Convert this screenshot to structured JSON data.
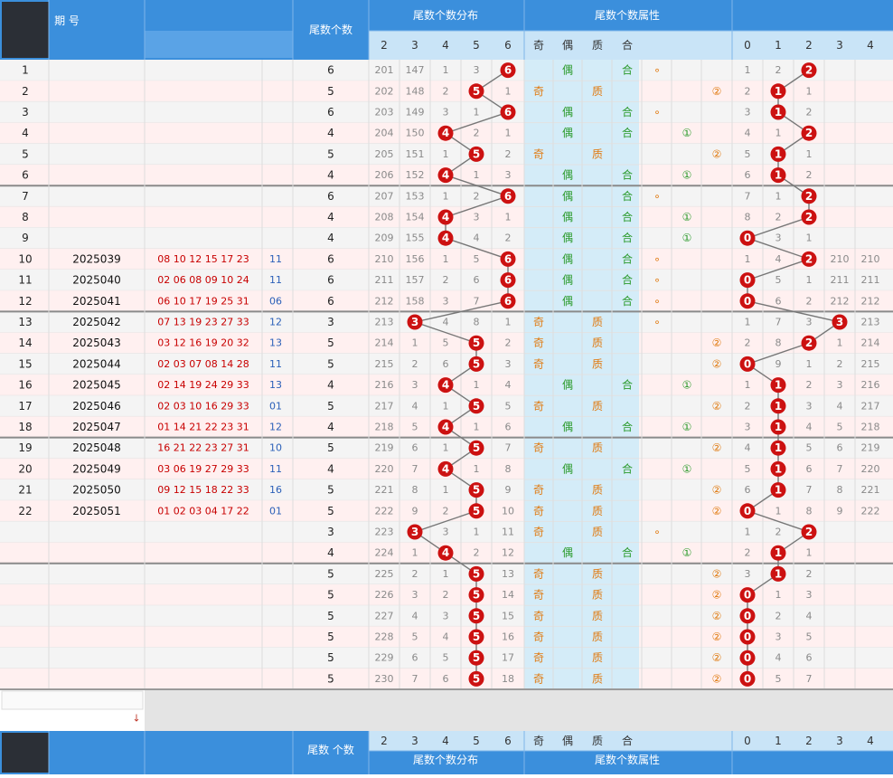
{
  "header": {
    "period_label": "期\n号",
    "tail_count_label": "尾数个数",
    "dist_group": "尾数个数分布",
    "attr_group": "尾数个数属性",
    "dist_cols": [
      "2",
      "3",
      "4",
      "5",
      "6"
    ],
    "attr_cols": [
      "奇",
      "偶",
      "质",
      "合",
      "",
      "",
      ""
    ],
    "right_cols": [
      "0",
      "1",
      "2",
      "3",
      "4"
    ]
  },
  "footer": {
    "tail_count_label": "尾数\n个数",
    "dist_group": "尾数个数分布",
    "attr_group": "尾数个数属性",
    "dist_cols": [
      "2",
      "3",
      "4",
      "5",
      "6"
    ],
    "attr_cols": [
      "奇",
      "偶",
      "质",
      "合",
      "",
      "",
      ""
    ],
    "right_cols": [
      "0",
      "1",
      "2",
      "3",
      "4"
    ]
  },
  "colors": {
    "header_blue": "#3b8fdc",
    "header_light": "#c9e4f7",
    "row_even": "#fff0f0",
    "row_odd": "#f4f4f4",
    "ball_red": "#cc1111",
    "attr_orange": "#e07a10",
    "attr_green": "#2a9a2a",
    "number_red": "#c80000",
    "special_blue": "#2a5fb8"
  },
  "chart_data": {
    "type": "table",
    "rows": [
      {
        "idx": "1",
        "period": "",
        "nums": "",
        "sp": "",
        "tail": 6,
        "dist": [
          "201",
          "147",
          "1",
          "3",
          "6"
        ],
        "attrs": [
          "",
          "偶",
          "",
          "合",
          "∘",
          "",
          ""
        ],
        "right": [
          "1",
          "2",
          "2",
          "",
          ""
        ]
      },
      {
        "idx": "2",
        "period": "",
        "nums": "",
        "sp": "",
        "tail": 5,
        "dist": [
          "202",
          "148",
          "2",
          "5",
          "1"
        ],
        "attrs": [
          "奇",
          "",
          "质",
          "",
          "",
          "",
          "②"
        ],
        "right": [
          "2",
          "1",
          "1",
          "",
          ""
        ]
      },
      {
        "idx": "3",
        "period": "",
        "nums": "",
        "sp": "",
        "tail": 6,
        "dist": [
          "203",
          "149",
          "3",
          "1",
          "6"
        ],
        "attrs": [
          "",
          "偶",
          "",
          "合",
          "∘",
          "",
          ""
        ],
        "right": [
          "3",
          "1",
          "2",
          "",
          ""
        ]
      },
      {
        "idx": "4",
        "period": "",
        "nums": "",
        "sp": "",
        "tail": 4,
        "dist": [
          "204",
          "150",
          "4",
          "2",
          "1"
        ],
        "attrs": [
          "",
          "偶",
          "",
          "合",
          "",
          "①",
          ""
        ],
        "right": [
          "4",
          "1",
          "2",
          "",
          ""
        ]
      },
      {
        "idx": "5",
        "period": "",
        "nums": "",
        "sp": "",
        "tail": 5,
        "dist": [
          "205",
          "151",
          "1",
          "5",
          "2"
        ],
        "attrs": [
          "奇",
          "",
          "质",
          "",
          "",
          "",
          "②"
        ],
        "right": [
          "5",
          "1",
          "1",
          "",
          ""
        ]
      },
      {
        "idx": "6",
        "period": "",
        "nums": "",
        "sp": "",
        "tail": 4,
        "dist": [
          "206",
          "152",
          "4",
          "1",
          "3"
        ],
        "attrs": [
          "",
          "偶",
          "",
          "合",
          "",
          "①",
          ""
        ],
        "right": [
          "6",
          "1",
          "2",
          "",
          ""
        ]
      },
      {
        "idx": "7",
        "period": "",
        "nums": "",
        "sp": "",
        "tail": 6,
        "dist": [
          "207",
          "153",
          "1",
          "2",
          "6"
        ],
        "attrs": [
          "",
          "偶",
          "",
          "合",
          "∘",
          "",
          ""
        ],
        "right": [
          "7",
          "1",
          "2",
          "",
          ""
        ]
      },
      {
        "idx": "8",
        "period": "",
        "nums": "",
        "sp": "",
        "tail": 4,
        "dist": [
          "208",
          "154",
          "4",
          "3",
          "1"
        ],
        "attrs": [
          "",
          "偶",
          "",
          "合",
          "",
          "①",
          ""
        ],
        "right": [
          "8",
          "2",
          "2",
          "",
          ""
        ]
      },
      {
        "idx": "9",
        "period": "",
        "nums": "",
        "sp": "",
        "tail": 4,
        "dist": [
          "209",
          "155",
          "4",
          "4",
          "2"
        ],
        "attrs": [
          "",
          "偶",
          "",
          "合",
          "",
          "①",
          ""
        ],
        "right": [
          "0",
          "3",
          "1",
          "",
          ""
        ]
      },
      {
        "idx": "10",
        "period": "2025039",
        "nums": "08 10 12 15 17 23",
        "sp": "11",
        "tail": 6,
        "dist": [
          "210",
          "156",
          "1",
          "5",
          "6"
        ],
        "attrs": [
          "",
          "偶",
          "",
          "合",
          "∘",
          "",
          ""
        ],
        "right": [
          "1",
          "4",
          "2",
          "210",
          "210"
        ]
      },
      {
        "idx": "11",
        "period": "2025040",
        "nums": "02 06 08 09 10 24",
        "sp": "11",
        "tail": 6,
        "dist": [
          "211",
          "157",
          "2",
          "6",
          "6"
        ],
        "attrs": [
          "",
          "偶",
          "",
          "合",
          "∘",
          "",
          ""
        ],
        "right": [
          "0",
          "5",
          "1",
          "211",
          "211"
        ]
      },
      {
        "idx": "12",
        "period": "2025041",
        "nums": "06 10 17 19 25 31",
        "sp": "06",
        "tail": 6,
        "dist": [
          "212",
          "158",
          "3",
          "7",
          "6"
        ],
        "attrs": [
          "",
          "偶",
          "",
          "合",
          "∘",
          "",
          ""
        ],
        "right": [
          "0",
          "6",
          "2",
          "212",
          "212"
        ]
      },
      {
        "idx": "13",
        "period": "2025042",
        "nums": "07 13 19 23 27 33",
        "sp": "12",
        "tail": 3,
        "dist": [
          "213",
          "3",
          "4",
          "8",
          "1"
        ],
        "attrs": [
          "奇",
          "",
          "质",
          "",
          "∘",
          "",
          ""
        ],
        "right": [
          "1",
          "7",
          "3",
          "3",
          "213"
        ]
      },
      {
        "idx": "14",
        "period": "2025043",
        "nums": "03 12 16 19 20 32",
        "sp": "13",
        "tail": 5,
        "dist": [
          "214",
          "1",
          "5",
          "5",
          "2"
        ],
        "attrs": [
          "奇",
          "",
          "质",
          "",
          "",
          "",
          "②"
        ],
        "right": [
          "2",
          "8",
          "2",
          "1",
          "214"
        ]
      },
      {
        "idx": "15",
        "period": "2025044",
        "nums": "02 03 07 08 14 28",
        "sp": "11",
        "tail": 5,
        "dist": [
          "215",
          "2",
          "6",
          "5",
          "3"
        ],
        "attrs": [
          "奇",
          "",
          "质",
          "",
          "",
          "",
          "②"
        ],
        "right": [
          "0",
          "9",
          "1",
          "2",
          "215"
        ]
      },
      {
        "idx": "16",
        "period": "2025045",
        "nums": "02 14 19 24 29 33",
        "sp": "13",
        "tail": 4,
        "dist": [
          "216",
          "3",
          "4",
          "1",
          "4"
        ],
        "attrs": [
          "",
          "偶",
          "",
          "合",
          "",
          "①",
          ""
        ],
        "right": [
          "1",
          "1",
          "2",
          "3",
          "216"
        ]
      },
      {
        "idx": "17",
        "period": "2025046",
        "nums": "02 03 10 16 29 33",
        "sp": "01",
        "tail": 5,
        "dist": [
          "217",
          "4",
          "1",
          "5",
          "5"
        ],
        "attrs": [
          "奇",
          "",
          "质",
          "",
          "",
          "",
          "②"
        ],
        "right": [
          "2",
          "1",
          "3",
          "4",
          "217"
        ]
      },
      {
        "idx": "18",
        "period": "2025047",
        "nums": "01 14 21 22 23 31",
        "sp": "12",
        "tail": 4,
        "dist": [
          "218",
          "5",
          "4",
          "1",
          "6"
        ],
        "attrs": [
          "",
          "偶",
          "",
          "合",
          "",
          "①",
          ""
        ],
        "right": [
          "3",
          "1",
          "4",
          "5",
          "218"
        ]
      },
      {
        "idx": "19",
        "period": "2025048",
        "nums": "16 21 22 23 27 31",
        "sp": "10",
        "tail": 5,
        "dist": [
          "219",
          "6",
          "1",
          "5",
          "7"
        ],
        "attrs": [
          "奇",
          "",
          "质",
          "",
          "",
          "",
          "②"
        ],
        "right": [
          "4",
          "1",
          "5",
          "6",
          "219"
        ]
      },
      {
        "idx": "20",
        "period": "2025049",
        "nums": "03 06 19 27 29 33",
        "sp": "11",
        "tail": 4,
        "dist": [
          "220",
          "7",
          "4",
          "1",
          "8"
        ],
        "attrs": [
          "",
          "偶",
          "",
          "合",
          "",
          "①",
          ""
        ],
        "right": [
          "5",
          "1",
          "6",
          "7",
          "220"
        ]
      },
      {
        "idx": "21",
        "period": "2025050",
        "nums": "09 12 15 18 22 33",
        "sp": "16",
        "tail": 5,
        "dist": [
          "221",
          "8",
          "1",
          "5",
          "9"
        ],
        "attrs": [
          "奇",
          "",
          "质",
          "",
          "",
          "",
          "②"
        ],
        "right": [
          "6",
          "1",
          "7",
          "8",
          "221"
        ]
      },
      {
        "idx": "22",
        "period": "2025051",
        "nums": "01 02 03 04 17 22",
        "sp": "01",
        "tail": 5,
        "dist": [
          "222",
          "9",
          "2",
          "5",
          "10"
        ],
        "attrs": [
          "奇",
          "",
          "质",
          "",
          "",
          "",
          "②"
        ],
        "right": [
          "0",
          "1",
          "8",
          "9",
          "222"
        ]
      },
      {
        "idx": "",
        "period": "",
        "nums": "",
        "sp": "",
        "tail": 3,
        "dist": [
          "223",
          "3",
          "3",
          "1",
          "11"
        ],
        "attrs": [
          "奇",
          "",
          "质",
          "",
          "∘",
          "",
          ""
        ],
        "right": [
          "1",
          "2",
          "2",
          "",
          ""
        ]
      },
      {
        "idx": "",
        "period": "",
        "nums": "",
        "sp": "",
        "tail": 4,
        "dist": [
          "224",
          "1",
          "4",
          "2",
          "12"
        ],
        "attrs": [
          "",
          "偶",
          "",
          "合",
          "",
          "①",
          ""
        ],
        "right": [
          "2",
          "1",
          "1",
          "",
          ""
        ]
      },
      {
        "idx": "",
        "period": "",
        "nums": "",
        "sp": "",
        "tail": 5,
        "dist": [
          "225",
          "2",
          "1",
          "5",
          "13"
        ],
        "attrs": [
          "奇",
          "",
          "质",
          "",
          "",
          "",
          "②"
        ],
        "right": [
          "3",
          "1",
          "2",
          "",
          ""
        ]
      },
      {
        "idx": "",
        "period": "",
        "nums": "",
        "sp": "",
        "tail": 5,
        "dist": [
          "226",
          "3",
          "2",
          "5",
          "14"
        ],
        "attrs": [
          "奇",
          "",
          "质",
          "",
          "",
          "",
          "②"
        ],
        "right": [
          "0",
          "1",
          "3",
          "",
          ""
        ]
      },
      {
        "idx": "",
        "period": "",
        "nums": "",
        "sp": "",
        "tail": 5,
        "dist": [
          "227",
          "4",
          "3",
          "5",
          "15"
        ],
        "attrs": [
          "奇",
          "",
          "质",
          "",
          "",
          "",
          "②"
        ],
        "right": [
          "0",
          "2",
          "4",
          "",
          ""
        ]
      },
      {
        "idx": "",
        "period": "",
        "nums": "",
        "sp": "",
        "tail": 5,
        "dist": [
          "228",
          "5",
          "4",
          "5",
          "16"
        ],
        "attrs": [
          "奇",
          "",
          "质",
          "",
          "",
          "",
          "②"
        ],
        "right": [
          "0",
          "3",
          "5",
          "",
          ""
        ]
      },
      {
        "idx": "",
        "period": "",
        "nums": "",
        "sp": "",
        "tail": 5,
        "dist": [
          "229",
          "6",
          "5",
          "5",
          "17"
        ],
        "attrs": [
          "奇",
          "",
          "质",
          "",
          "",
          "",
          "②"
        ],
        "right": [
          "0",
          "4",
          "6",
          "",
          ""
        ]
      },
      {
        "idx": "",
        "period": "",
        "nums": "",
        "sp": "",
        "tail": 5,
        "dist": [
          "230",
          "7",
          "6",
          "5",
          "18"
        ],
        "attrs": [
          "奇",
          "",
          "质",
          "",
          "",
          "",
          "②"
        ],
        "right": [
          "0",
          "5",
          "7",
          "",
          ""
        ]
      }
    ],
    "dist_ball_col": [
      4,
      3,
      4,
      2,
      3,
      2,
      4,
      2,
      2,
      4,
      4,
      4,
      1,
      3,
      3,
      2,
      3,
      2,
      3,
      2,
      3,
      3,
      1,
      2,
      3,
      3,
      3,
      3,
      3,
      3
    ],
    "right_ball_col": [
      2,
      1,
      1,
      2,
      1,
      1,
      2,
      2,
      0,
      2,
      0,
      0,
      3,
      2,
      0,
      1,
      1,
      1,
      1,
      1,
      1,
      0,
      2,
      1,
      1,
      0,
      0,
      0,
      0,
      0
    ]
  }
}
